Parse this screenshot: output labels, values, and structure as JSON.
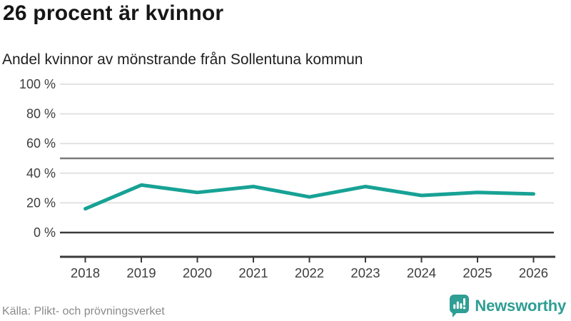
{
  "header": {
    "title": "26 procent är kvinnor",
    "subtitle": "Andel kvinnor av mönstrande från Sollentuna kommun"
  },
  "footer": {
    "source": "Källa: Plikt- och prövningsverket",
    "logo_text": "Newsworthy",
    "logo_icon": "bar-chart-speech-bubble-icon"
  },
  "colors": {
    "line": "#17a295",
    "brand": "#2f9e94",
    "grid_light": "#e2e2e2",
    "grid_reference": "#7a7a7a",
    "axis_dark": "#3a3a3a",
    "tick_label": "#3d3d3d",
    "title_text": "#161616",
    "source_text": "#8a8a8a"
  },
  "chart_data": {
    "type": "line",
    "title": "26 procent är kvinnor",
    "subtitle": "Andel kvinnor av mönstrande från Sollentuna kommun",
    "x": [
      2018,
      2019,
      2020,
      2021,
      2022,
      2023,
      2024,
      2025,
      2026
    ],
    "series": [
      {
        "name": "Andel kvinnor av mönstrande",
        "values": [
          16,
          32,
          27,
          31,
          24,
          31,
          25,
          27,
          26
        ]
      }
    ],
    "ylim": [
      0,
      100
    ],
    "yticks": [
      0,
      20,
      40,
      60,
      80,
      100
    ],
    "ytick_suffix": " %",
    "reference_lines": [
      50
    ],
    "grid": true,
    "legend": "none",
    "source": "Källa: Plikt- och prövningsverket"
  }
}
